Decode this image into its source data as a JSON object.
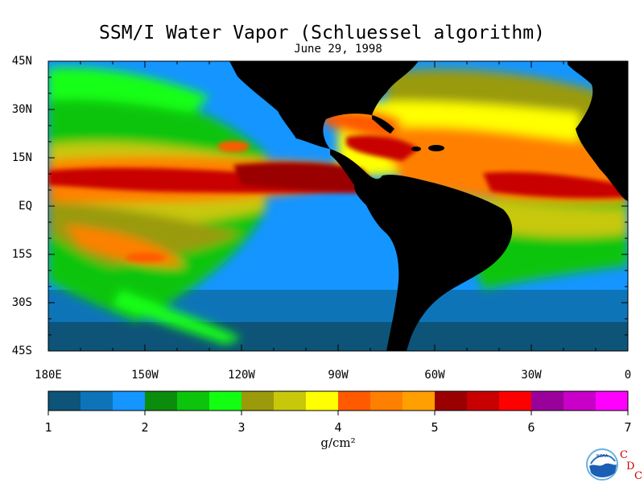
{
  "title": "SSM/I Water Vapor (Schluessel algorithm)",
  "subtitle": "June 29, 1998",
  "latitude_labels": [
    "45N",
    "30N",
    "15N",
    "EQ",
    "15S",
    "30S",
    "45S"
  ],
  "longitude_labels": [
    "180E",
    "150W",
    "120W",
    "90W",
    "60W",
    "30W",
    "0"
  ],
  "colorbar": {
    "min": 1,
    "max": 7,
    "tick_labels": [
      "1",
      "2",
      "3",
      "4",
      "5",
      "6",
      "7"
    ],
    "units": "g/cm²",
    "colors": [
      "#0d5478",
      "#0e74b8",
      "#1495ff",
      "#0c8c0c",
      "#0cc40c",
      "#12ff12",
      "#9a9a0a",
      "#c8c80a",
      "#ffff00",
      "#ff5a00",
      "#ff8000",
      "#ffa000",
      "#9a0000",
      "#c80000",
      "#ff0000",
      "#9a009a",
      "#c800c8",
      "#ff00ff"
    ]
  },
  "land_color": "#000000",
  "logo": {
    "name": "noaa-logo",
    "letters": "CDC"
  },
  "logo_text": "NOAA"
}
